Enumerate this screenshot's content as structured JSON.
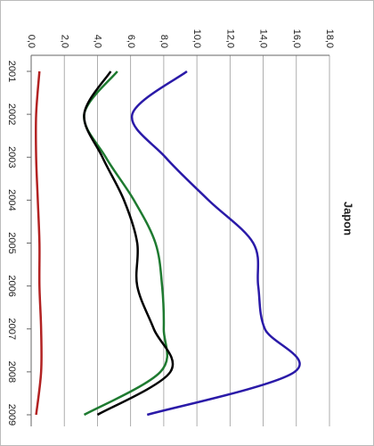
{
  "chart_data": {
    "type": "line",
    "title": "Japon",
    "categories": [
      "2001",
      "2002",
      "2003",
      "2004",
      "2005",
      "2006",
      "2007",
      "2008",
      "2009"
    ],
    "series": [
      {
        "color": "#2a1aa8",
        "values": [
          9.4,
          6.1,
          8.1,
          10.7,
          13.4,
          13.7,
          14.1,
          15.9,
          7.0
        ]
      },
      {
        "color": "#1e7a30",
        "values": [
          5.2,
          3.2,
          4.5,
          6.2,
          7.5,
          7.9,
          8.0,
          7.8,
          3.2
        ]
      },
      {
        "color": "#000000",
        "values": [
          4.8,
          3.2,
          4.3,
          5.6,
          6.4,
          6.4,
          7.4,
          8.4,
          4.0
        ]
      },
      {
        "color": "#b22222",
        "values": [
          0.5,
          0.3,
          0.3,
          0.4,
          0.5,
          0.5,
          0.6,
          0.6,
          0.3
        ]
      }
    ],
    "ylim": [
      0,
      18
    ],
    "yticks": [
      {
        "value": 0,
        "label": "0,0"
      },
      {
        "value": 2,
        "label": "2,0"
      },
      {
        "value": 4,
        "label": "4,0"
      },
      {
        "value": 6,
        "label": "6,0"
      },
      {
        "value": 8,
        "label": "8,0"
      },
      {
        "value": 10,
        "label": "10,0"
      },
      {
        "value": 12,
        "label": "12,0"
      },
      {
        "value": 14,
        "label": "14,0"
      },
      {
        "value": 16,
        "label": "16,0"
      },
      {
        "value": 18,
        "label": "18,0"
      }
    ],
    "grid": true
  }
}
